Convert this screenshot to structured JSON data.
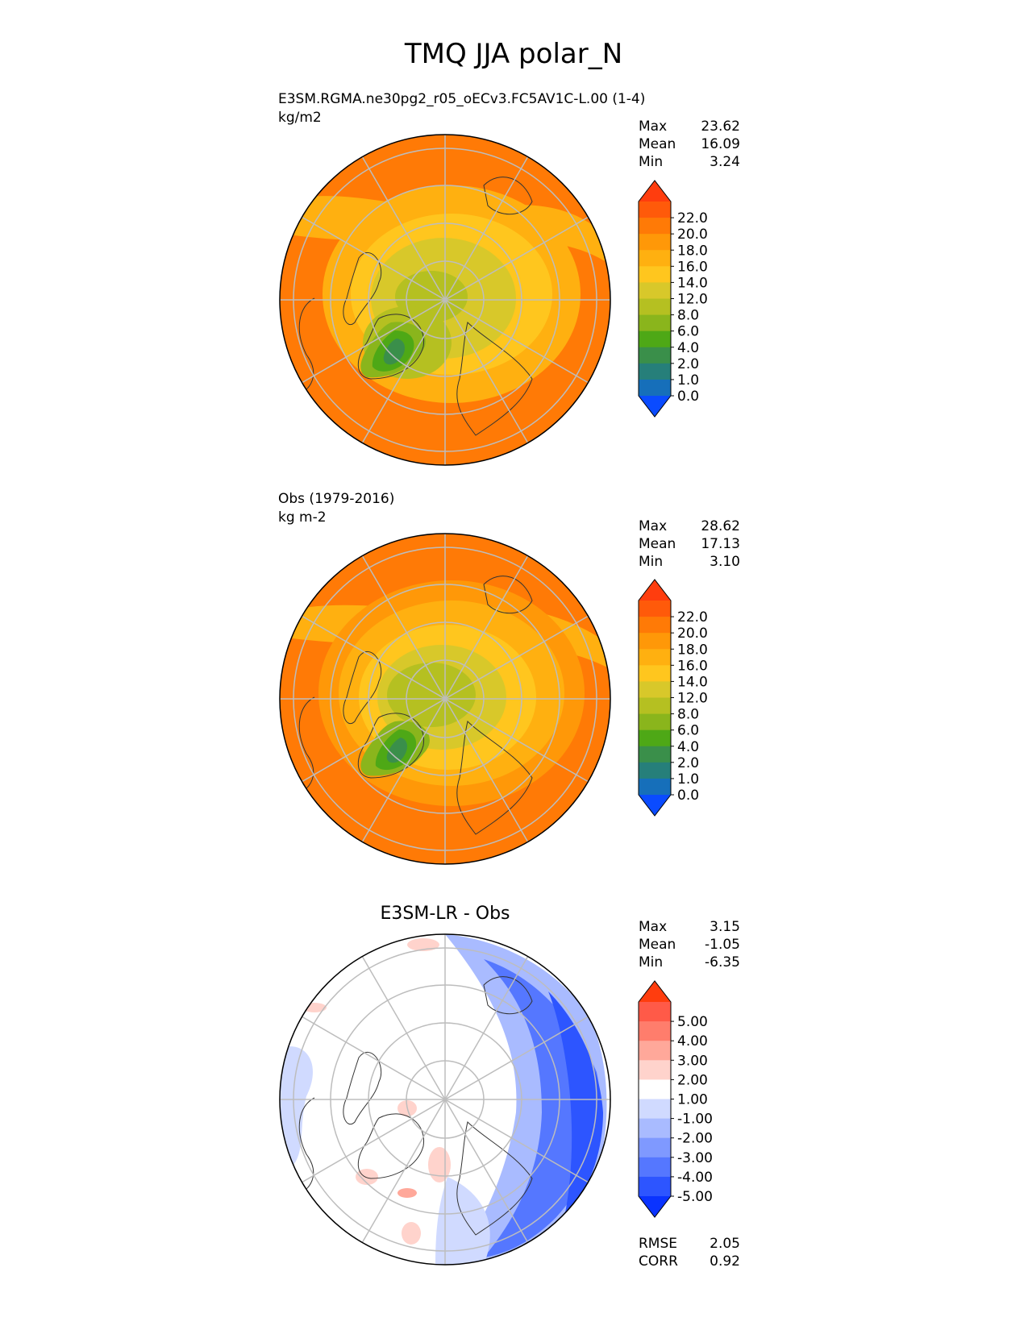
{
  "figure_title": "TMQ JJA polar_N",
  "chart_data": [
    {
      "type": "heatmap",
      "projection": "north-polar-stereographic",
      "title_left": "E3SM.RGMA.ne30pg2_r05_oECv3.FC5AV1C-L.00 (1-4)",
      "units": "kg/m2",
      "stats": [
        {
          "label": "Max",
          "value": "23.62"
        },
        {
          "label": "Mean",
          "value": "16.09"
        },
        {
          "label": "Min",
          "value": "3.24"
        }
      ],
      "colorbar": {
        "extend": "both",
        "levels": [
          0.0,
          1.0,
          2.0,
          4.0,
          6.0,
          8.0,
          12.0,
          14.0,
          16.0,
          18.0,
          20.0,
          22.0
        ],
        "tick_labels": [
          "22.0",
          "20.0",
          "18.0",
          "16.0",
          "14.0",
          "12.0",
          "8.0",
          "6.0",
          "4.0",
          "2.0",
          "1.0",
          "0.0"
        ],
        "colors": [
          "#ff3d0e",
          "#ff5a0a",
          "#ff7a06",
          "#ff9808",
          "#ffb010",
          "#ffc61e",
          "#d8c82a",
          "#b5c021",
          "#8ab51c",
          "#4ea816",
          "#3a8f4a",
          "#267f7a",
          "#166fba",
          "#0a4bff"
        ]
      },
      "field_summary": {
        "pole_value": 12.0,
        "greenland_min": 3.24,
        "equatorward_edge": 21.0
      }
    },
    {
      "type": "heatmap",
      "projection": "north-polar-stereographic",
      "title_left": "Obs (1979-2016)",
      "units": "kg m-2",
      "stats": [
        {
          "label": "Max",
          "value": "28.62"
        },
        {
          "label": "Mean",
          "value": "17.13"
        },
        {
          "label": "Min",
          "value": "3.10"
        }
      ],
      "colorbar": {
        "extend": "both",
        "levels": [
          0.0,
          1.0,
          2.0,
          4.0,
          6.0,
          8.0,
          12.0,
          14.0,
          16.0,
          18.0,
          20.0,
          22.0
        ],
        "tick_labels": [
          "22.0",
          "20.0",
          "18.0",
          "16.0",
          "14.0",
          "12.0",
          "8.0",
          "6.0",
          "4.0",
          "2.0",
          "1.0",
          "0.0"
        ],
        "colors": [
          "#ff3d0e",
          "#ff5a0a",
          "#ff7a06",
          "#ff9808",
          "#ffb010",
          "#ffc61e",
          "#d8c82a",
          "#b5c021",
          "#8ab51c",
          "#4ea816",
          "#3a8f4a",
          "#267f7a",
          "#166fba",
          "#0a4bff"
        ]
      },
      "field_summary": {
        "pole_value": 12.5,
        "greenland_min": 3.1,
        "equatorward_edge": 22.5
      }
    },
    {
      "type": "heatmap",
      "projection": "north-polar-stereographic",
      "title_center": "E3SM-LR - Obs",
      "stats": [
        {
          "label": "Max",
          "value": "3.15"
        },
        {
          "label": "Mean",
          "value": "-1.05"
        },
        {
          "label": "Min",
          "value": "-6.35"
        }
      ],
      "colorbar": {
        "extend": "both",
        "levels": [
          -5.0,
          -4.0,
          -3.0,
          -2.0,
          -1.0,
          1.0,
          2.0,
          3.0,
          4.0,
          5.0
        ],
        "tick_labels": [
          "5.00",
          "4.00",
          "3.00",
          "2.00",
          "1.00",
          "-1.00",
          "-2.00",
          "-3.00",
          "-4.00",
          "-5.00"
        ],
        "colors": [
          "#ff3d0e",
          "#ff5a48",
          "#ff7d6c",
          "#ffa89a",
          "#ffd3cc",
          "#ffffff",
          "#d0daff",
          "#a9bbff",
          "#7f99ff",
          "#5577ff",
          "#2d55ff",
          "#0a33ff"
        ]
      },
      "metrics": [
        {
          "label": "RMSE",
          "value": "2.05"
        },
        {
          "label": "CORR",
          "value": "0.92"
        }
      ]
    }
  ]
}
